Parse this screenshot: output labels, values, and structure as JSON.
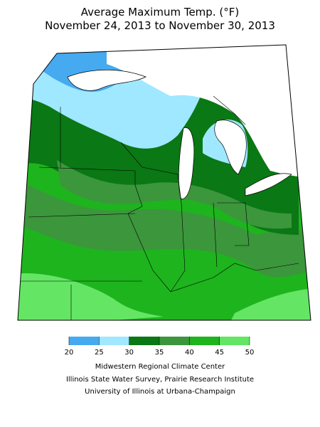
{
  "title": [
    "Average Maximum Temp. (°F)",
    "November 24, 2013 to November 30, 2013"
  ],
  "legend": {
    "bins": [
      20,
      25,
      30,
      35,
      40,
      45,
      50
    ],
    "colors": [
      "#46aaf0",
      "#a0e8ff",
      "#0a7814",
      "#3c963c",
      "#1eb41e",
      "#64e664"
    ]
  },
  "credits": [
    "Midwestern Regional Climate Center",
    "Illinois State Water Survey, Prairie Research Institute",
    "University of Illinois at Urbana-Champaign"
  ]
}
